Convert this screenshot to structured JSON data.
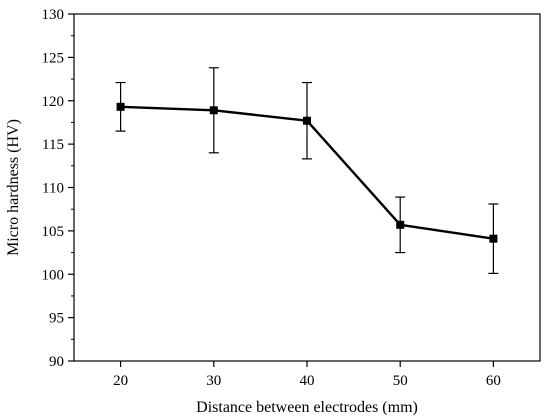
{
  "chart_data": {
    "type": "line",
    "xlabel": "Distance between electrodes  (mm)",
    "ylabel": "Micro hardness (HV)",
    "xlim": [
      15,
      65
    ],
    "ylim": [
      90,
      130
    ],
    "x_ticks": [
      20,
      30,
      40,
      50,
      60
    ],
    "y_ticks": [
      90,
      95,
      100,
      105,
      110,
      115,
      120,
      125,
      130
    ],
    "grid": false,
    "series": [
      {
        "x": [
          20,
          30,
          40,
          50,
          60
        ],
        "y": [
          119.3,
          118.9,
          117.7,
          105.7,
          104.1
        ],
        "error": [
          2.8,
          4.9,
          4.4,
          3.2,
          4.0
        ],
        "marker": "square",
        "color": "#000000"
      }
    ]
  }
}
